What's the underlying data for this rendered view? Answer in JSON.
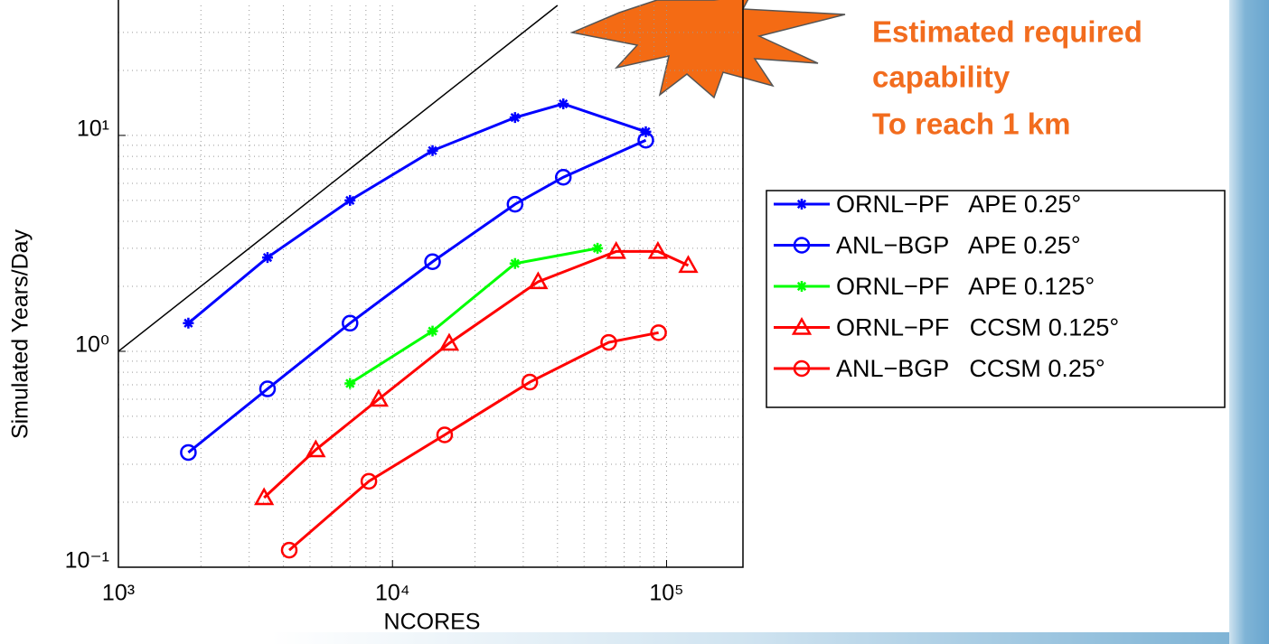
{
  "chart_data": {
    "type": "line",
    "xlabel": "NCORES",
    "ylabel": "Simulated Years/Day",
    "log_x": true,
    "log_y": true,
    "grid": true,
    "xlim": [
      1000,
      190000
    ],
    "ylim": [
      0.1,
      40
    ],
    "xticks": [
      {
        "value": 1000,
        "label": "10³"
      },
      {
        "value": 10000,
        "label": "10⁴"
      },
      {
        "value": 100000,
        "label": "10⁵"
      }
    ],
    "yticks": [
      {
        "value": 0.1,
        "label": "10⁻¹"
      },
      {
        "value": 1,
        "label": "10⁰"
      },
      {
        "value": 10,
        "label": "10¹"
      }
    ],
    "annotation": [
      "Estimated required",
      "capability",
      "To reach 1 km"
    ],
    "reference_line": {
      "color": "#000000",
      "x": [
        1000,
        40000
      ],
      "values": [
        1,
        40
      ]
    },
    "series": [
      {
        "name": "ORNL−PF   APE 0.25°",
        "color": "#0000ff",
        "marker": "star",
        "x": [
          1800,
          3500,
          7000,
          14000,
          28000,
          42000,
          84000
        ],
        "values": [
          1.35,
          2.72,
          5.0,
          8.5,
          12.1,
          14,
          10.4
        ]
      },
      {
        "name": "ANL−BGP   APE 0.25°",
        "color": "#0000ff",
        "marker": "circle",
        "x": [
          1800,
          3500,
          7000,
          14000,
          28000,
          42000,
          84000
        ],
        "values": [
          0.34,
          0.67,
          1.35,
          2.6,
          4.8,
          6.4,
          9.5
        ]
      },
      {
        "name": "ORNL−PF   APE 0.125°",
        "color": "#00ff00",
        "marker": "star",
        "x": [
          7000,
          14000,
          28000,
          56000
        ],
        "values": [
          0.71,
          1.24,
          2.55,
          3.0
        ]
      },
      {
        "name": "ORNL−PF   CCSM 0.125°",
        "color": "#ff0000",
        "marker": "triangle",
        "x": [
          3400,
          5250,
          8900,
          16100,
          34000,
          65500,
          93000,
          120000
        ],
        "values": [
          0.21,
          0.35,
          0.6,
          1.09,
          2.1,
          2.9,
          2.9,
          2.5
        ]
      },
      {
        "name": "ANL−BGP   CCSM 0.25°",
        "color": "#ff0000",
        "marker": "circle",
        "x": [
          4200,
          8200,
          15500,
          31700,
          61500,
          93500
        ],
        "values": [
          0.12,
          0.25,
          0.41,
          0.72,
          1.1,
          1.22
        ]
      }
    ]
  }
}
